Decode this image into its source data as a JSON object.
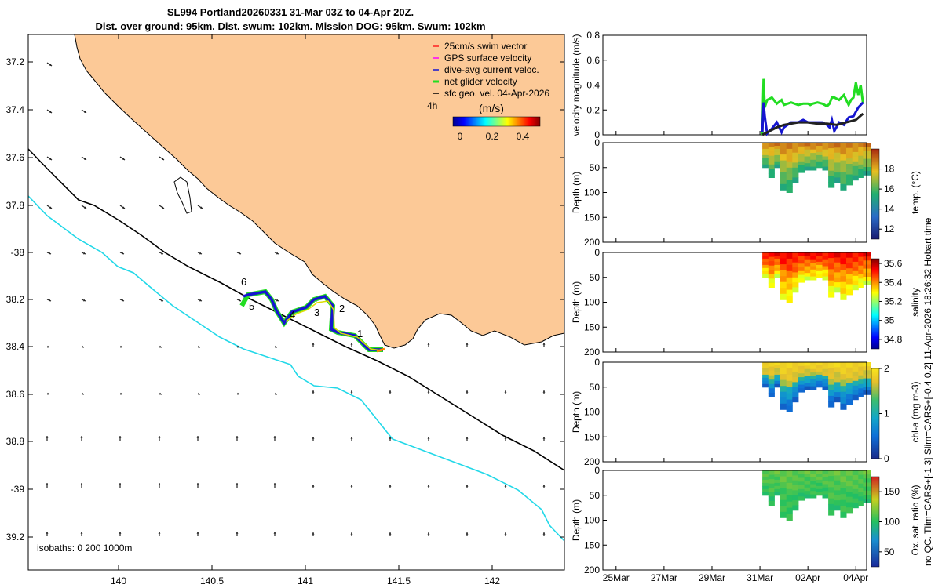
{
  "header": {
    "title_line1": "SL994 Portland20260331 31-Mar 03Z to 04-Apr 20Z.",
    "title_line2": "Dist. over ground: 95km. Dist. swum: 102km. Mission DOG: 95km. Swum: 102km"
  },
  "side_note": "no QC. Tlim=CARS+[-1 3] Slim=CARS+[-0.4 0.2] 11-Apr-2026 18:26:32 Hobart time",
  "colors": {
    "land": "#fcc997",
    "ocean": "#ffffff",
    "isobath_200": "#000000",
    "isobath_1000": "#22d8e8",
    "track_green": "#22dd22",
    "track_blue": "#1515d0",
    "track_yellow": "#dddd00",
    "track_orange": "#ff8800",
    "vel_green": "#22dd22",
    "vel_blue": "#1515d0",
    "vel_black": "#222222"
  },
  "map": {
    "lon_ticks": [
      "140",
      "140.5",
      "141",
      "141.5",
      "142"
    ],
    "lat_ticks": [
      "37.2",
      "37.4",
      "37.6",
      "37.8",
      "-38",
      "38.2",
      "38.4",
      "38.6",
      "38.8",
      "-39",
      "39.2"
    ],
    "isobaths_label": "isobaths: 0   200   1000m",
    "waypoints": [
      "1",
      "2",
      "3",
      "4",
      "5",
      "6"
    ],
    "legend": {
      "items": [
        {
          "label": "25cm/s swim vector",
          "color": "#ff2020"
        },
        {
          "label": "GPS surface velocity",
          "color": "#ff00ff"
        },
        {
          "label": "dive-avg current veloc.",
          "color": "#1515d0"
        },
        {
          "label": "net glider velocity",
          "color": "#22dd22"
        },
        {
          "label": "sfc geo. vel. 04-Apr-2026",
          "color": "#000000"
        }
      ],
      "time_tag": "4h",
      "colorbar_title": "(m/s)",
      "colorbar_ticks": [
        "0",
        "0.2",
        "0.4"
      ]
    }
  },
  "chart_data": [
    {
      "type": "line",
      "title": "",
      "ylabel": "velocity magnitude (m/s)",
      "ylim": [
        0,
        0.8
      ],
      "yticks": [
        "0",
        "0.2",
        "0.4",
        "0.6",
        "0.8"
      ],
      "x_unit": "days since 00:00 24-Mar-2026",
      "xlim": [
        0.45,
        11.45
      ],
      "series": [
        {
          "name": "net glider velocity",
          "x": [
            7.1,
            7.15,
            7.2,
            7.3,
            7.5,
            7.7,
            7.9,
            8.0,
            8.3,
            8.6,
            8.8,
            9.0,
            9.1,
            9.2,
            9.4,
            9.6,
            9.8,
            9.9,
            10.0,
            10.1,
            10.3,
            10.5,
            10.7,
            10.8,
            10.9,
            11.0,
            11.1,
            11.2,
            11.3
          ],
          "values": [
            0.0,
            0.45,
            0.22,
            0.28,
            0.3,
            0.25,
            0.28,
            0.24,
            0.26,
            0.24,
            0.25,
            0.25,
            0.24,
            0.25,
            0.26,
            0.25,
            0.23,
            0.25,
            0.3,
            0.3,
            0.28,
            0.32,
            0.24,
            0.28,
            0.3,
            0.42,
            0.32,
            0.4,
            0.25
          ]
        },
        {
          "name": "dive-avg current veloc.",
          "x": [
            7.1,
            7.15,
            7.2,
            7.3,
            7.5,
            7.7,
            7.9,
            8.0,
            8.3,
            8.6,
            8.8,
            9.0,
            9.3,
            9.6,
            9.8,
            9.9,
            10.0,
            10.1,
            10.3,
            10.5,
            10.7,
            10.9,
            11.1,
            11.3
          ],
          "values": [
            0.02,
            0.26,
            0.15,
            0.01,
            0.05,
            0.1,
            0.02,
            0.06,
            0.1,
            0.1,
            0.12,
            0.1,
            0.1,
            0.1,
            0.08,
            0.06,
            0.12,
            0.03,
            0.1,
            0.08,
            0.14,
            0.15,
            0.22,
            0.26
          ]
        },
        {
          "name": "sfc geo. vel.",
          "x": [
            7.1,
            7.4,
            7.7,
            8.0,
            8.3,
            8.6,
            9.0,
            9.4,
            9.8,
            10.2,
            10.6,
            11.0,
            11.3
          ],
          "values": [
            0.0,
            0.03,
            0.06,
            0.08,
            0.09,
            0.1,
            0.1,
            0.09,
            0.09,
            0.08,
            0.1,
            0.12,
            0.17
          ]
        }
      ]
    },
    {
      "type": "heatmap",
      "ylabel": "Depth (m)",
      "colorbar_label": "temp. (°C)",
      "ylim": [
        200,
        0
      ],
      "yticks": [
        "0",
        "50",
        "100",
        "150",
        "200"
      ],
      "color_ticks": [
        "12",
        "14",
        "16",
        "18"
      ],
      "color_range": [
        11,
        20
      ],
      "profile_days": [
        7.1,
        7.35,
        7.6,
        7.85,
        8.1,
        8.35,
        8.6,
        8.85,
        9.1,
        9.35,
        9.6,
        9.85,
        10.1,
        10.35,
        10.6,
        10.85,
        11.1,
        11.3
      ],
      "max_depth": [
        50,
        70,
        50,
        95,
        100,
        80,
        60,
        55,
        55,
        50,
        55,
        90,
        80,
        95,
        85,
        75,
        70,
        65
      ],
      "surface_value": 19,
      "deep_value": 15
    },
    {
      "type": "heatmap",
      "ylabel": "Depth (m)",
      "colorbar_label": "salinity",
      "ylim": [
        200,
        0
      ],
      "yticks": [
        "0",
        "50",
        "100",
        "150",
        "200"
      ],
      "color_ticks": [
        "34.8",
        "35",
        "35.2",
        "35.4",
        "35.6"
      ],
      "color_range": [
        34.7,
        35.65
      ],
      "profile_days": [
        7.1,
        7.35,
        7.6,
        7.85,
        8.1,
        8.35,
        8.6,
        8.85,
        9.1,
        9.35,
        9.6,
        9.85,
        10.1,
        10.35,
        10.6,
        10.85,
        11.1,
        11.3
      ],
      "max_depth": [
        50,
        70,
        50,
        95,
        100,
        80,
        60,
        55,
        55,
        50,
        55,
        90,
        80,
        95,
        85,
        75,
        70,
        65
      ],
      "surface_value": 35.55,
      "deep_value": 35.25
    },
    {
      "type": "heatmap",
      "ylabel": "Depth (m)",
      "colorbar_label": "chl-a (mg m-3)",
      "ylim": [
        200,
        0
      ],
      "yticks": [
        "0",
        "50",
        "100",
        "150",
        "200"
      ],
      "color_ticks": [
        "0",
        "1",
        "2"
      ],
      "color_range": [
        0,
        2
      ],
      "profile_days": [
        7.1,
        7.35,
        7.6,
        7.85,
        8.1,
        8.35,
        8.6,
        8.85,
        9.1,
        9.35,
        9.6,
        9.85,
        10.1,
        10.35,
        10.6,
        10.85,
        11.1,
        11.3
      ],
      "max_depth": [
        50,
        70,
        50,
        95,
        100,
        80,
        60,
        55,
        55,
        50,
        55,
        90,
        80,
        95,
        85,
        75,
        70,
        65
      ],
      "surface_value": 1.9,
      "deep_value": 0.3
    },
    {
      "type": "heatmap",
      "ylabel": "Depth (m)",
      "colorbar_label": "Ox. sat. ratio (%)",
      "ylim": [
        200,
        0
      ],
      "yticks": [
        "0",
        "50",
        "100",
        "150",
        "200"
      ],
      "color_ticks": [
        "50",
        "100",
        "150"
      ],
      "color_range": [
        25,
        175
      ],
      "profile_days": [
        7.1,
        7.35,
        7.6,
        7.85,
        8.1,
        8.35,
        8.6,
        8.85,
        9.1,
        9.35,
        9.6,
        9.85,
        10.1,
        10.35,
        10.6,
        10.85,
        11.1,
        11.3
      ],
      "max_depth": [
        50,
        70,
        50,
        95,
        100,
        80,
        60,
        55,
        55,
        50,
        55,
        90,
        80,
        95,
        85,
        75,
        70,
        65
      ],
      "surface_value": 115,
      "deep_value": 100
    },
    {
      "type": "axis",
      "xlabel_ticks": [
        "25Mar",
        "27Mar",
        "29Mar",
        "31Mar",
        "02Apr",
        "04Apr"
      ],
      "xtick_days": [
        1,
        3,
        5,
        7,
        9,
        11
      ]
    }
  ]
}
